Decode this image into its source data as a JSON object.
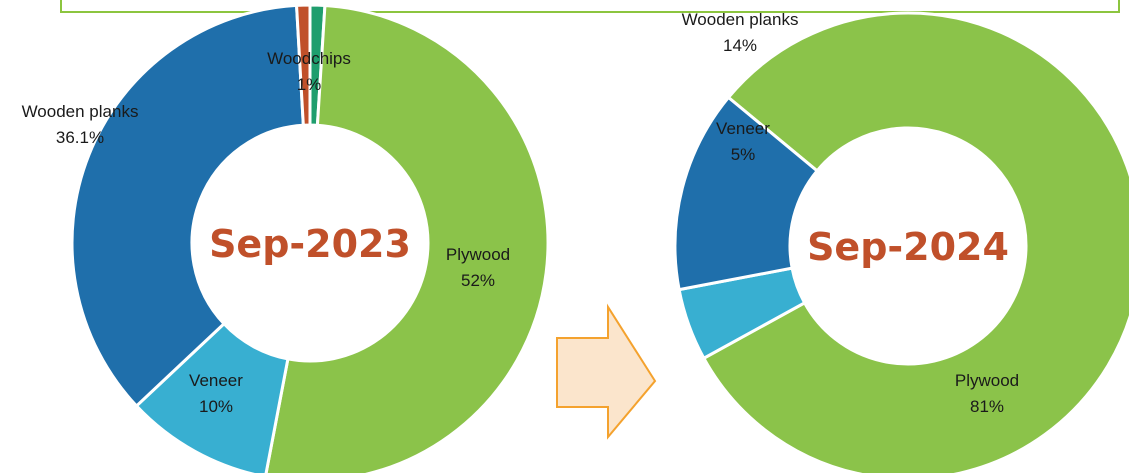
{
  "colors": {
    "plywood": "#8bc34a",
    "wooden_planks": "#1f6fab",
    "veneer": "#38afd1",
    "woodchips": "#1f9e6e",
    "other": "#c0502a",
    "center_text": "#c0502a",
    "arrow_fill": "#fbe5cc",
    "arrow_stroke": "#f4a22e",
    "frame": "#8cc53f"
  },
  "chart_data": [
    {
      "type": "pie",
      "donut": true,
      "center_label": "Sep-2023",
      "slices": [
        {
          "key": "woodchips",
          "value": 1,
          "label": "Woodchips",
          "value_label": "1%"
        },
        {
          "key": "plywood",
          "value": 52,
          "label": "Plywood",
          "value_label": "52%"
        },
        {
          "key": "veneer",
          "value": 10,
          "label": "Veneer",
          "value_label": "10%"
        },
        {
          "key": "wooden_planks",
          "value": 36.1,
          "label": "Wooden planks",
          "value_label": "36.1%"
        },
        {
          "key": "other",
          "value": 0.9,
          "label": "",
          "value_label": ""
        }
      ]
    },
    {
      "type": "pie",
      "donut": true,
      "center_label": "Sep-2024",
      "slices": [
        {
          "key": "plywood",
          "value": 81,
          "label": "Plywood",
          "value_label": "81%"
        },
        {
          "key": "veneer",
          "value": 5,
          "label": "Veneer",
          "value_label": "5%"
        },
        {
          "key": "wooden_planks",
          "value": 14,
          "label": "Wooden planks",
          "value_label": "14%"
        }
      ]
    }
  ]
}
